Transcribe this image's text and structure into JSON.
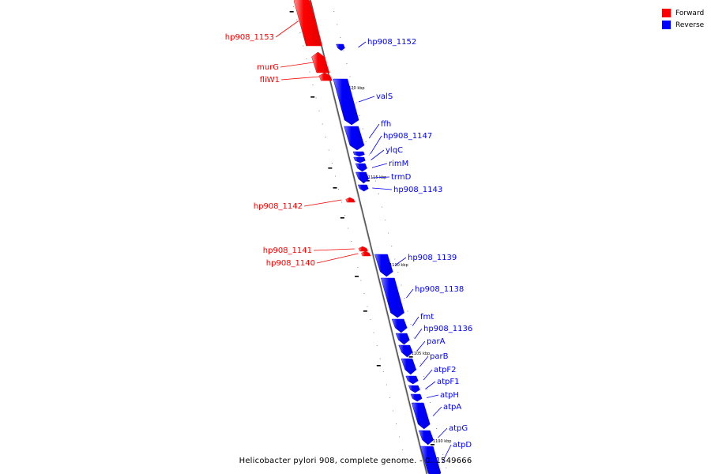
{
  "legend": {
    "forward_label": "Forward",
    "reverse_label": "Reverse",
    "forward_color": "#ff0000",
    "reverse_color": "#0000ff"
  },
  "caption": "Helicobacter pylori 908, complete genome. - 0..1549666",
  "axis_ticks": [
    {
      "label": "1120 kbp"
    },
    {
      "label": "1115 kbp"
    },
    {
      "label": "1110 kbp"
    },
    {
      "label": "1105 kbp"
    },
    {
      "label": "1100 kbp"
    }
  ],
  "genes": [
    {
      "name": "hp908_1153",
      "strand": "forward"
    },
    {
      "name": "hp908_1152",
      "strand": "reverse"
    },
    {
      "name": "murG",
      "strand": "forward"
    },
    {
      "name": "fliW1",
      "strand": "forward"
    },
    {
      "name": "valS",
      "strand": "reverse"
    },
    {
      "name": "ffh",
      "strand": "reverse"
    },
    {
      "name": "hp908_1147",
      "strand": "reverse"
    },
    {
      "name": "ylqC",
      "strand": "reverse"
    },
    {
      "name": "rimM",
      "strand": "reverse"
    },
    {
      "name": "trmD",
      "strand": "reverse"
    },
    {
      "name": "hp908_1143",
      "strand": "reverse"
    },
    {
      "name": "hp908_1142",
      "strand": "forward"
    },
    {
      "name": "hp908_1141",
      "strand": "forward"
    },
    {
      "name": "hp908_1140",
      "strand": "forward"
    },
    {
      "name": "hp908_1139",
      "strand": "reverse"
    },
    {
      "name": "hp908_1138",
      "strand": "reverse"
    },
    {
      "name": "fmt",
      "strand": "reverse"
    },
    {
      "name": "hp908_1136",
      "strand": "reverse"
    },
    {
      "name": "parA",
      "strand": "reverse"
    },
    {
      "name": "parB",
      "strand": "reverse"
    },
    {
      "name": "atpF2",
      "strand": "reverse"
    },
    {
      "name": "atpF1",
      "strand": "reverse"
    },
    {
      "name": "atpH",
      "strand": "reverse"
    },
    {
      "name": "atpA",
      "strand": "reverse"
    },
    {
      "name": "atpG",
      "strand": "reverse"
    },
    {
      "name": "atpD",
      "strand": "reverse"
    }
  ]
}
